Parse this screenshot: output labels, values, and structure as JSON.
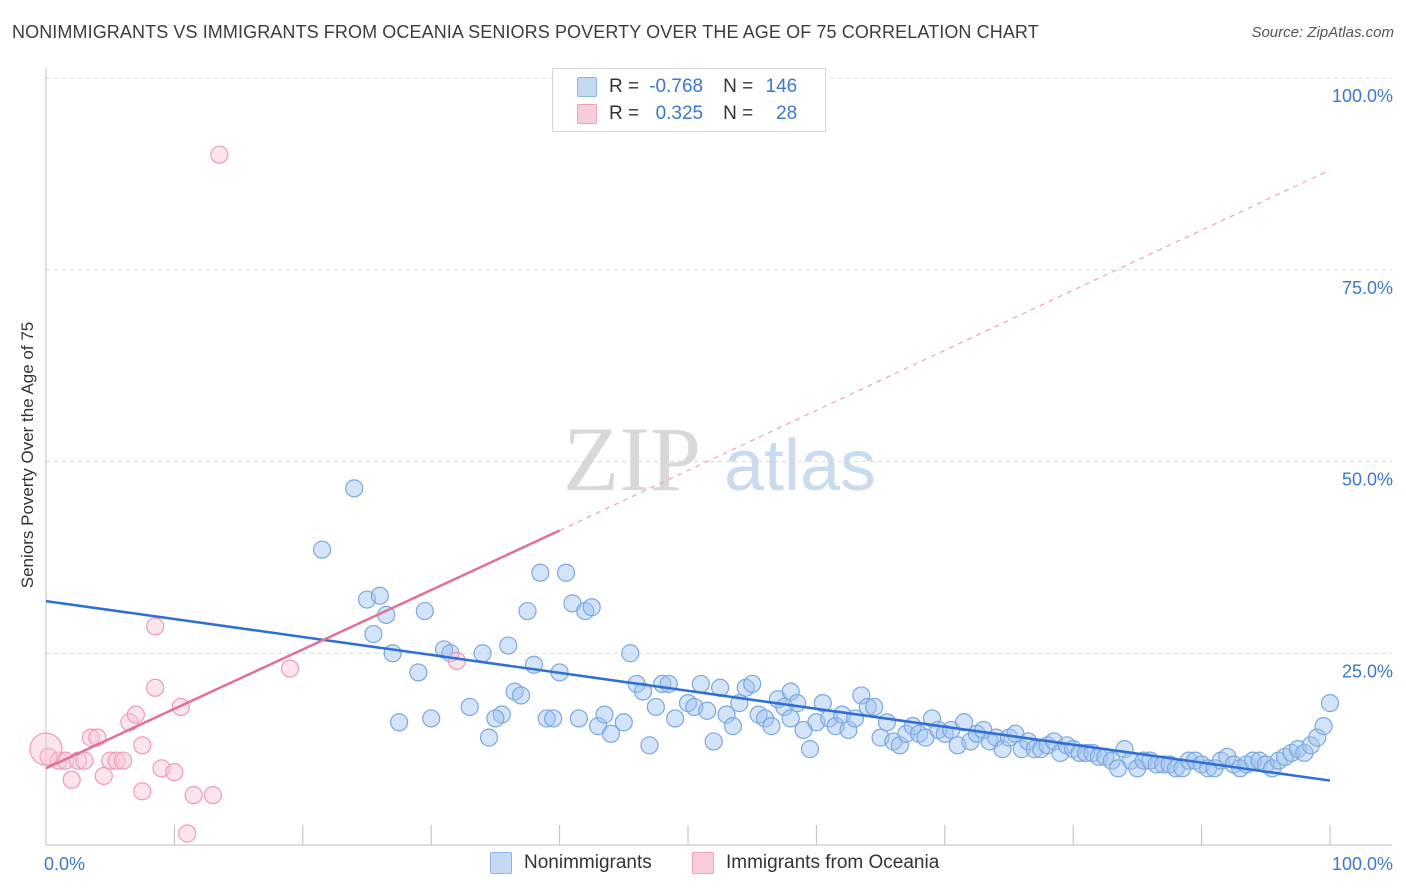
{
  "title": "NONIMMIGRANTS VS IMMIGRANTS FROM OCEANIA SENIORS POVERTY OVER THE AGE OF 75 CORRELATION CHART",
  "source": "Source: ZipAtlas.com",
  "watermark": {
    "zip": "ZIP",
    "atlas": "atlas"
  },
  "legend": {
    "rows": [
      {
        "r_label": "R =",
        "r_value": "-0.768",
        "n_label": "N =",
        "n_value": "146",
        "color": "#8fb5e6",
        "fill": "#c5d9f3"
      },
      {
        "r_label": "R =",
        "r_value": "0.325",
        "n_label": "N =",
        "n_value": "28",
        "color": "#eea3bb",
        "fill": "#f8ccd9"
      }
    ],
    "bottom": [
      "Nonimmigrants",
      "Immigrants from Oceania"
    ]
  },
  "colors": {
    "blue_line": "#2f6fd4",
    "pink_line": "#e07098",
    "blue_point_stroke": "#7ba7e0",
    "blue_point_fill": "rgba(160,196,240,0.45)",
    "pink_point_stroke": "#ee9ab5",
    "pink_point_fill": "rgba(248,196,214,0.45)",
    "tick_label": "#3b78c8",
    "grid": "#d9d9d9"
  },
  "chart_data": {
    "type": "scatter",
    "title": "NONIMMIGRANTS VS IMMIGRANTS FROM OCEANIA SENIORS POVERTY OVER THE AGE OF 75 CORRELATION CHART",
    "xlabel": "",
    "ylabel": "Seniors Poverty Over the Age of 75",
    "xlim": [
      0,
      100
    ],
    "ylim": [
      0,
      100
    ],
    "x_tick_labels": [
      "0.0%",
      "100.0%"
    ],
    "y_ticks": [
      25,
      50,
      75,
      100
    ],
    "y_tick_labels": [
      "25.0%",
      "50.0%",
      "75.0%",
      "100.0%"
    ],
    "grid": "horizontal dashed",
    "legend_position": "top-center",
    "series": [
      {
        "name": "Nonimmigrants",
        "trend": {
          "x": [
            0,
            100
          ],
          "y": [
            31.8,
            8.4
          ]
        },
        "points": [
          [
            21.5,
            38.5
          ],
          [
            24,
            46.5
          ],
          [
            25,
            32
          ],
          [
            25.5,
            27.5
          ],
          [
            26,
            32.5
          ],
          [
            26.5,
            30
          ],
          [
            27,
            25
          ],
          [
            27.5,
            16
          ],
          [
            29,
            22.5
          ],
          [
            29.5,
            30.5
          ],
          [
            30,
            16.5
          ],
          [
            31,
            25.5
          ],
          [
            31.5,
            25
          ],
          [
            34,
            25
          ],
          [
            33,
            18
          ],
          [
            35.5,
            17
          ],
          [
            34.5,
            14
          ],
          [
            35,
            16.5
          ],
          [
            36,
            26
          ],
          [
            36.5,
            20
          ],
          [
            37,
            19.5
          ],
          [
            37.5,
            30.5
          ],
          [
            38,
            23.5
          ],
          [
            38.5,
            35.5
          ],
          [
            39,
            16.5
          ],
          [
            39.5,
            16.5
          ],
          [
            40,
            22.5
          ],
          [
            40.5,
            35.5
          ],
          [
            41,
            31.5
          ],
          [
            41.5,
            16.5
          ],
          [
            42,
            30.5
          ],
          [
            42.5,
            31
          ],
          [
            43,
            15.5
          ],
          [
            43.5,
            17
          ],
          [
            44,
            14.5
          ],
          [
            45,
            16
          ],
          [
            45.5,
            25
          ],
          [
            46,
            21
          ],
          [
            46.5,
            20
          ],
          [
            47,
            13
          ],
          [
            47.5,
            18
          ],
          [
            48,
            21
          ],
          [
            48.5,
            21
          ],
          [
            49,
            16.5
          ],
          [
            50,
            18.5
          ],
          [
            50.5,
            18
          ],
          [
            51,
            21
          ],
          [
            51.5,
            17.5
          ],
          [
            52,
            13.5
          ],
          [
            52.5,
            20.5
          ],
          [
            53,
            17
          ],
          [
            53.5,
            15.5
          ],
          [
            54,
            18.5
          ],
          [
            54.5,
            20.5
          ],
          [
            55,
            21
          ],
          [
            55.5,
            17
          ],
          [
            56,
            16.5
          ],
          [
            56.5,
            15.5
          ],
          [
            57,
            19
          ],
          [
            57.5,
            18
          ],
          [
            58,
            20
          ],
          [
            58.5,
            18.5
          ],
          [
            59,
            15
          ],
          [
            59.5,
            12.5
          ],
          [
            60,
            16
          ],
          [
            60.5,
            18.5
          ],
          [
            61,
            16.5
          ],
          [
            61.5,
            15.5
          ],
          [
            62,
            17
          ],
          [
            62.5,
            15
          ],
          [
            63,
            16.5
          ],
          [
            63.5,
            19.5
          ],
          [
            64,
            18
          ],
          [
            64.5,
            18
          ],
          [
            65,
            14
          ],
          [
            65.5,
            16
          ],
          [
            66,
            13.5
          ],
          [
            66.5,
            13
          ],
          [
            67,
            14.5
          ],
          [
            67.5,
            15.5
          ],
          [
            68,
            14.5
          ],
          [
            68.5,
            14
          ],
          [
            69,
            16.5
          ],
          [
            69.5,
            15
          ],
          [
            70,
            14.5
          ],
          [
            70.5,
            15
          ],
          [
            71,
            13
          ],
          [
            71.5,
            16
          ],
          [
            72,
            13.5
          ],
          [
            72.5,
            14.5
          ],
          [
            73,
            15
          ],
          [
            73.5,
            13.5
          ],
          [
            74,
            14
          ],
          [
            74.5,
            12.5
          ],
          [
            75,
            14
          ],
          [
            75.5,
            14.5
          ],
          [
            76,
            12.5
          ],
          [
            76.5,
            13.5
          ],
          [
            77,
            12.5
          ],
          [
            77.5,
            12.5
          ],
          [
            78,
            13
          ],
          [
            78.5,
            13.5
          ],
          [
            79,
            12
          ],
          [
            79.5,
            13
          ],
          [
            80,
            12.5
          ],
          [
            80.5,
            12
          ],
          [
            81,
            12
          ],
          [
            81.5,
            12
          ],
          [
            82,
            11.5
          ],
          [
            82.5,
            11.5
          ],
          [
            83,
            11
          ],
          [
            83.5,
            10
          ],
          [
            84,
            12.5
          ],
          [
            84.5,
            11
          ],
          [
            85,
            10
          ],
          [
            85.5,
            11
          ],
          [
            86,
            11
          ],
          [
            86.5,
            10.5
          ],
          [
            87,
            10.5
          ],
          [
            87.5,
            10.5
          ],
          [
            88,
            10
          ],
          [
            88.5,
            10
          ],
          [
            89,
            11
          ],
          [
            89.5,
            11
          ],
          [
            90,
            10.5
          ],
          [
            90.5,
            10
          ],
          [
            91,
            10
          ],
          [
            91.5,
            11
          ],
          [
            92,
            11.5
          ],
          [
            92.5,
            10.5
          ],
          [
            93,
            10
          ],
          [
            93.5,
            10.5
          ],
          [
            94,
            11
          ],
          [
            94.5,
            11
          ],
          [
            95,
            10.5
          ],
          [
            95.5,
            10
          ],
          [
            96,
            11
          ],
          [
            96.5,
            11.5
          ],
          [
            97,
            12
          ],
          [
            97.5,
            12.5
          ],
          [
            98,
            12
          ],
          [
            98.5,
            13
          ],
          [
            99,
            14
          ],
          [
            99.5,
            15.5
          ],
          [
            100,
            18.5
          ],
          [
            58,
            16.5
          ]
        ]
      },
      {
        "name": "Immigrants from Oceania",
        "trend": {
          "x": [
            0,
            40
          ],
          "y": [
            10,
            41
          ],
          "dashed_to": [
            100,
            88
          ]
        },
        "points": [
          [
            0.2,
            11.5
          ],
          [
            1,
            11
          ],
          [
            1.5,
            11
          ],
          [
            2,
            8.5
          ],
          [
            2.5,
            11
          ],
          [
            3,
            11
          ],
          [
            3.5,
            14
          ],
          [
            4,
            14
          ],
          [
            4.5,
            9
          ],
          [
            5,
            11
          ],
          [
            5.5,
            11
          ],
          [
            6,
            11
          ],
          [
            6.5,
            16
          ],
          [
            7,
            17
          ],
          [
            7.5,
            7
          ],
          [
            7.5,
            13
          ],
          [
            8.5,
            20.5
          ],
          [
            8.5,
            28.5
          ],
          [
            9,
            10
          ],
          [
            10,
            9.5
          ],
          [
            10.5,
            18
          ],
          [
            11,
            1.5
          ],
          [
            11.5,
            6.5
          ],
          [
            13,
            6.5
          ],
          [
            13.5,
            90
          ],
          [
            19,
            23
          ],
          [
            32,
            24
          ],
          [
            0,
            12.5
          ]
        ]
      }
    ]
  }
}
